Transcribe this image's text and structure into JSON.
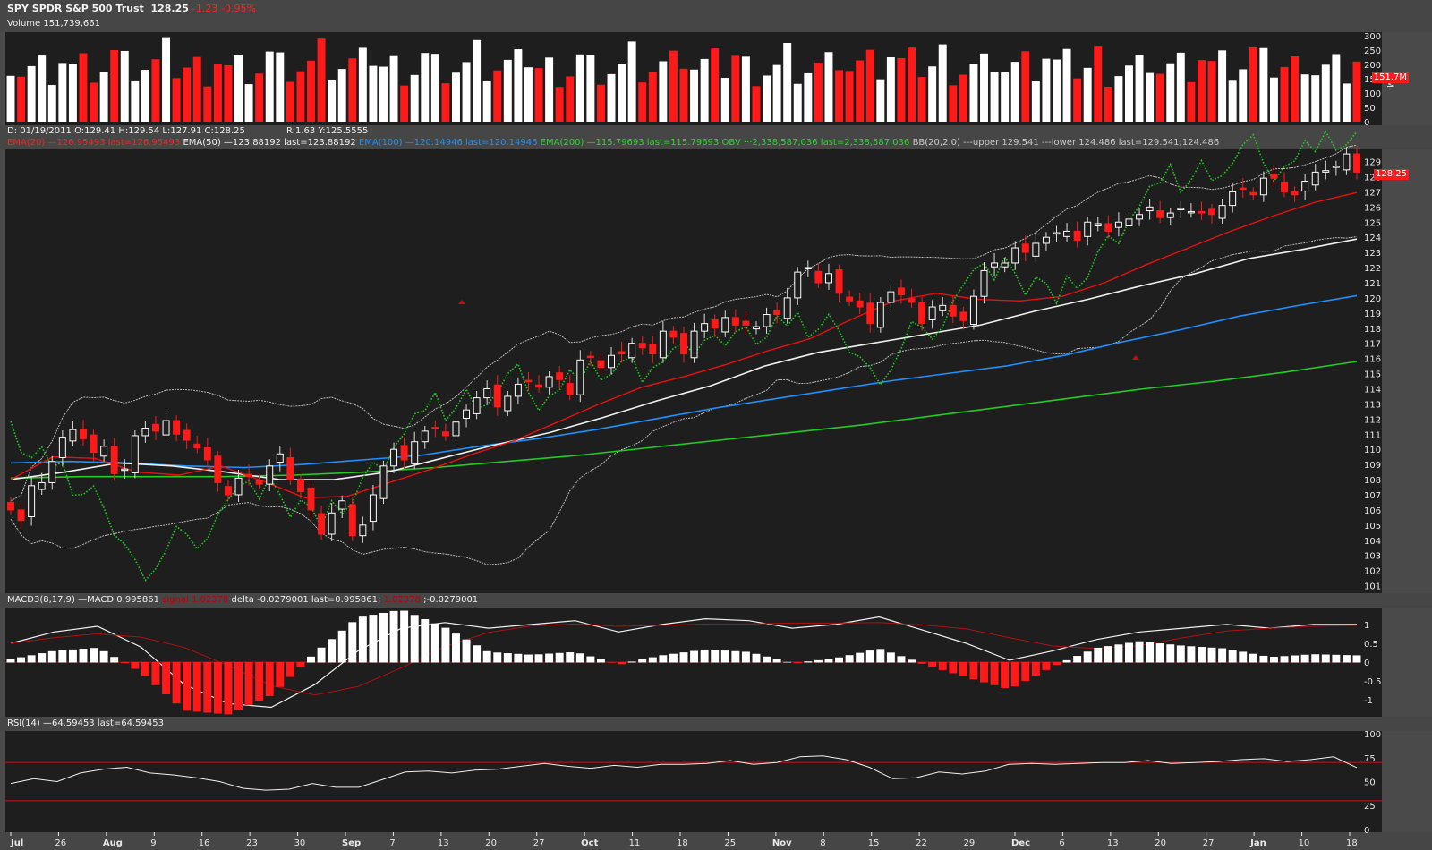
{
  "header": {
    "symbol": "SPY",
    "name": "SPDR S&P 500 Trust",
    "last": "128.25",
    "change": "-1.23",
    "change_pct": "-0.95%",
    "volume_label": "Volume 151,739,661"
  },
  "ohlc_bar": {
    "date": "D: 01/19/2011",
    "open": "O:129.41",
    "high": "H:129.54",
    "low": "L:127.91",
    "close": "C:128.25",
    "range": "R:1.63",
    "y": "Y:125.5555"
  },
  "studies": {
    "ema20": "EMA(20) —126.95493 last=126.95493",
    "ema50": "EMA(50) —123.88192 last=123.88192",
    "ema100": "EMA(100) —120.14946 last=120.14946",
    "ema200": "EMA(200) —115.79693 last=115.79693",
    "obv": "OBV ···2,338,587,036 last=2,338,587,036",
    "bb": "BB(20,2.0) ---upper 129.541 ---lower 124.486 last=129.541;124.486",
    "macd_a": "MACD3(8,17,9) —MACD 0.995861",
    "macd_b": "signal 1.02378",
    "macd_c": "delta -0.0279001 last=0.995861;",
    "macd_d": "1.02378",
    "macd_e": ";-0.0279001",
    "rsi": "RSI(14) —64.59453 last=64.59453"
  },
  "volume_axis": [
    "300",
    "250",
    "200",
    "150",
    "100",
    "50",
    "0"
  ],
  "volume_unit": "M",
  "volume_tag": "151.7M",
  "price_tag": "128.25",
  "price_axis": [
    "129",
    "128",
    "127",
    "126",
    "125",
    "124",
    "123",
    "122",
    "121",
    "120",
    "119",
    "118",
    "117",
    "116",
    "115",
    "114",
    "113",
    "112",
    "111",
    "110",
    "109",
    "108",
    "107",
    "106",
    "105",
    "104",
    "103",
    "102",
    "101"
  ],
  "macd_axis": [
    "1",
    "0.5",
    "0",
    "-0.5",
    "-1"
  ],
  "rsi_axis": [
    "100",
    "75",
    "50",
    "25",
    "0"
  ],
  "x_ticks": [
    {
      "label": "Jul",
      "bold": true
    },
    {
      "label": "26"
    },
    {
      "label": "Aug",
      "bold": true
    },
    {
      "label": "9"
    },
    {
      "label": "16"
    },
    {
      "label": "23"
    },
    {
      "label": "30"
    },
    {
      "label": "Sep",
      "bold": true
    },
    {
      "label": "7"
    },
    {
      "label": "13"
    },
    {
      "label": "20"
    },
    {
      "label": "27"
    },
    {
      "label": "Oct",
      "bold": true
    },
    {
      "label": "11"
    },
    {
      "label": "18"
    },
    {
      "label": "25"
    },
    {
      "label": "Nov",
      "bold": true
    },
    {
      "label": "8"
    },
    {
      "label": "15"
    },
    {
      "label": "22"
    },
    {
      "label": "29"
    },
    {
      "label": "Dec",
      "bold": true
    },
    {
      "label": "6"
    },
    {
      "label": "13"
    },
    {
      "label": "20"
    },
    {
      "label": "27"
    },
    {
      "label": "Jan",
      "bold": true
    },
    {
      "label": "10"
    },
    {
      "label": "18"
    }
  ],
  "colors": {
    "up": "#ffffff",
    "down": "#ff1a1a",
    "ema20": "#e81010",
    "ema50": "#f0f0f0",
    "ema100": "#1e90ff",
    "ema200": "#22cc22",
    "obv": "#22cc22",
    "bb": "#bbbbbb",
    "rsi_band": "#d01010"
  },
  "chart_data": {
    "type": "line",
    "series": [
      {
        "name": "close",
        "values": [
          106,
          105.3,
          107.6,
          107.8,
          109.2,
          110.8,
          111.3,
          110.7,
          109.8,
          110.2,
          108.4,
          108.7,
          110.9,
          111.4,
          111.2,
          111.9,
          111,
          110.6,
          110.1,
          109.3,
          107.8,
          107,
          108.1,
          108.2,
          107.7,
          108.9,
          109.7,
          108,
          107.2,
          106,
          104.4,
          105.8,
          106.6,
          104.3,
          105,
          107,
          108.9,
          110,
          109.3,
          110.5,
          111.2,
          111.4,
          110.9,
          111.8,
          112.6,
          113.4,
          114,
          112.8,
          113.5,
          114.3,
          114.5,
          114.1,
          114.8,
          114.6,
          113.6,
          115.9,
          116.1,
          115.4,
          116.2,
          116.3,
          117,
          116.7,
          116.3,
          117.8,
          117.4,
          116.3,
          117.8,
          118.3,
          118,
          118.7,
          118.2,
          118.2,
          118.1,
          118.9,
          118.9,
          120,
          121.7,
          122,
          121,
          121.6,
          120.3,
          119.8,
          119.4,
          118.3,
          119.7,
          120.4,
          120.2,
          119.7,
          118.3,
          119.4,
          119.5,
          118.8,
          118.5,
          120.1,
          121.8,
          122.3,
          122.3,
          123.3,
          123,
          123.6,
          124,
          124.3,
          124.4,
          123.8,
          125,
          124.9,
          124.4,
          125,
          125.2,
          125.5,
          126,
          125.3,
          125.6,
          125.9,
          125.7,
          125.6,
          125.5,
          126.1,
          127,
          127.2,
          126.8,
          127.9,
          127.9,
          127,
          126.8,
          127.7,
          128.3,
          128.4,
          128.7,
          129.5,
          128.3
        ]
      },
      {
        "name": "EMA(20)",
        "values": [
          108,
          109.5,
          109.4,
          108.5,
          108.3,
          108.9,
          107.9,
          106.8,
          106.9,
          107.8,
          108.7,
          109.7,
          110.6,
          111.8,
          113,
          114.1,
          114.8,
          115.6,
          116.5,
          117.3,
          118.6,
          119.8,
          120.3,
          119.9,
          119.8,
          120.1,
          121,
          122.2,
          123.3,
          124.4,
          125.4,
          126.3,
          126.95
        ]
      },
      {
        "name": "EMA(50)",
        "values": [
          108,
          108.5,
          109.1,
          108.9,
          108.5,
          108,
          108,
          108.5,
          109.4,
          110.3,
          111.1,
          112.1,
          113.2,
          114.2,
          115.5,
          116.4,
          117,
          117.6,
          118.2,
          119.1,
          119.9,
          120.8,
          121.6,
          122.6,
          123.2,
          123.88
        ]
      },
      {
        "name": "EMA(100)",
        "values": [
          109.1,
          109.2,
          109.1,
          108.9,
          108.8,
          109,
          109.3,
          109.6,
          110.2,
          110.7,
          111.3,
          112,
          112.7,
          113.3,
          113.9,
          114.5,
          115,
          115.5,
          116.2,
          117.1,
          117.9,
          118.8,
          119.5,
          120.15
        ]
      },
      {
        "name": "EMA(200)",
        "values": [
          108.1,
          108.2,
          108.2,
          108.2,
          108.3,
          108.5,
          108.8,
          109.2,
          109.6,
          110.1,
          110.6,
          111.1,
          111.6,
          112.2,
          112.8,
          113.4,
          114,
          114.5,
          115.1,
          115.8
        ]
      },
      {
        "name": "RSI(14)",
        "values": [
          48,
          53,
          50,
          59,
          63,
          65,
          59,
          57,
          54,
          50,
          43,
          41,
          42,
          48,
          44,
          44,
          52,
          60,
          61,
          59,
          62,
          63,
          66,
          69,
          66,
          64,
          67,
          65,
          68,
          68,
          69,
          72,
          68,
          70,
          76,
          77,
          73,
          65,
          53,
          54,
          60,
          58,
          61,
          68,
          69,
          68,
          69,
          70,
          70,
          72,
          69,
          70,
          71,
          73,
          74,
          71,
          73,
          76,
          64.6
        ]
      },
      {
        "name": "MACD",
        "values": [
          0.5,
          0.8,
          0.95,
          0.4,
          -0.6,
          -1.1,
          -1.2,
          -0.6,
          0.3,
          0.9,
          1.05,
          0.9,
          1,
          1.1,
          0.8,
          1,
          1.15,
          1.1,
          0.9,
          1,
          1.2,
          0.85,
          0.5,
          0.05,
          0.3,
          0.6,
          0.8,
          0.9,
          1,
          0.9,
          1,
          1
        ]
      }
    ],
    "ylim": [
      100.5,
      129.8
    ]
  }
}
